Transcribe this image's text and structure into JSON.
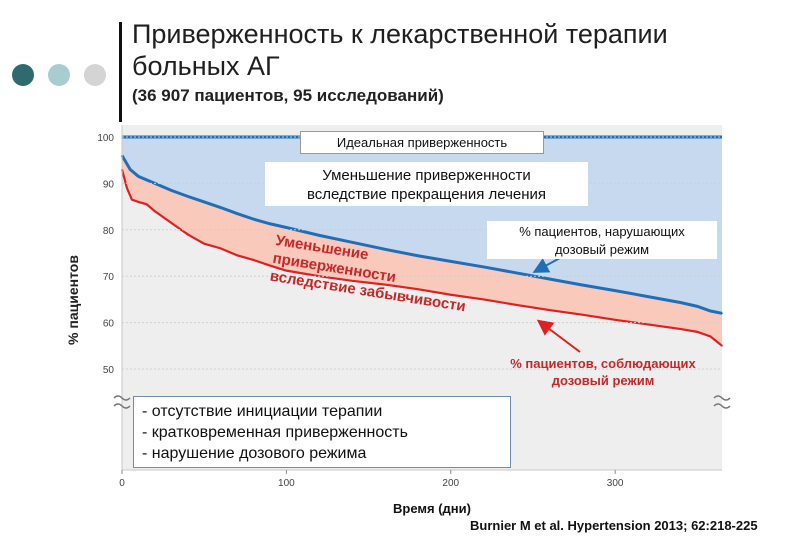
{
  "header": {
    "title_line1": "Приверженность к лекарственной терапии",
    "title_line2": "больных АГ",
    "subtitle": "(36 907 пациентов, 95 исследований)"
  },
  "colors": {
    "dot1": "#2e6b6e",
    "dot2": "#a7cdd0",
    "dot3": "#d4d4d4",
    "blue_area": "#c7d9ee",
    "pink_area": "#f9c9bc",
    "blue_line": "#1f6fb8",
    "red_line": "#e02020",
    "annotation_red": "#c62828"
  },
  "annotations": {
    "ideal": "Идеальная приверженность",
    "decline_line1": "Уменьшение приверженности",
    "decline_line2": "вследствие прекращения лечения",
    "nonadherent_line1": "% пациентов, нарушающих",
    "nonadherent_line2": "дозовый режим",
    "forgetful_line1": "Уменьшение приверженности",
    "forgetful_line2": "вследствие забывчивости",
    "adherent_line1": "% пациентов, соблюдающих",
    "adherent_line2": "дозовый режим",
    "reasons": [
      "- отсутствие инициации терапии",
      "- кратковременная приверженность",
      "- нарушение дозового режима"
    ]
  },
  "footer": {
    "citation": "Burnier M et al. Hypertension 2013; 62:218-225"
  },
  "chart_data": {
    "type": "area",
    "ylabel": "% пациентов",
    "xlabel": "Время (дни)",
    "xlim": [
      0,
      365
    ],
    "ylim": [
      50,
      100
    ],
    "y_ticks": [
      50,
      60,
      70,
      80,
      90,
      100
    ],
    "x_ticks": [
      0,
      100,
      200,
      300
    ],
    "y_break_visible": true,
    "series": [
      {
        "name": "% пациентов, нарушающих дозовый режим",
        "x": [
          0,
          5,
          10,
          20,
          30,
          40,
          50,
          60,
          70,
          80,
          90,
          100,
          120,
          140,
          160,
          180,
          200,
          220,
          240,
          260,
          280,
          300,
          320,
          340,
          350,
          358,
          365
        ],
        "y": [
          96,
          93,
          91.5,
          90,
          88.5,
          87.2,
          86,
          84.8,
          83.5,
          82.3,
          81.3,
          80.5,
          78.8,
          77.3,
          75.8,
          74.4,
          73.2,
          72,
          70.7,
          69.4,
          68.1,
          66.9,
          65.6,
          64.3,
          63.5,
          62.5,
          62
        ]
      },
      {
        "name": "% пациентов, соблюдающих дозовый режим",
        "x": [
          0,
          3,
          6,
          10,
          15,
          20,
          30,
          40,
          50,
          60,
          70,
          80,
          90,
          100,
          120,
          140,
          160,
          180,
          200,
          220,
          240,
          260,
          280,
          300,
          320,
          340,
          350,
          358,
          365
        ],
        "y": [
          93,
          89,
          86.5,
          86,
          85.5,
          84,
          81.5,
          79,
          77,
          76,
          74.5,
          73.5,
          72.3,
          71.2,
          70,
          69,
          68.2,
          67.2,
          66,
          65,
          63.8,
          62.7,
          61.7,
          60.6,
          59.6,
          58.6,
          58,
          57,
          55
        ]
      }
    ]
  }
}
